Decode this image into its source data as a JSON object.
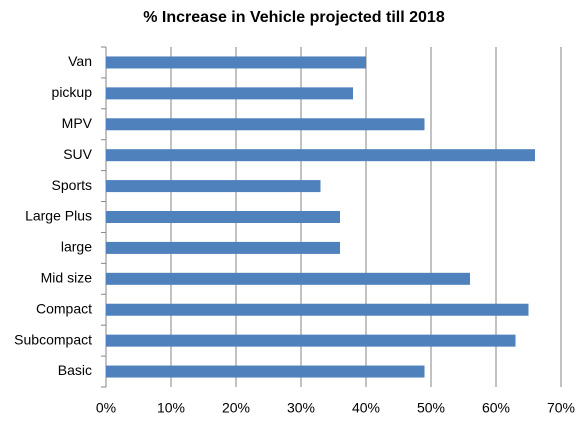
{
  "chart_data": {
    "type": "bar",
    "orientation": "horizontal",
    "title": "% Increase in Vehicle projected till 2018",
    "categories": [
      "Van",
      "pickup",
      "MPV",
      "SUV",
      "Sports",
      "Large Plus",
      "large",
      "Mid size",
      "Compact",
      "Subcompact",
      "Basic"
    ],
    "values": [
      40,
      38,
      49,
      66,
      33,
      36,
      36,
      56,
      65,
      63,
      49
    ],
    "color": "#4f81bd",
    "xlim": [
      0,
      70
    ],
    "xticks": [
      {
        "value": 0,
        "label": "0%"
      },
      {
        "value": 10,
        "label": "10%"
      },
      {
        "value": 20,
        "label": "20%"
      },
      {
        "value": 30,
        "label": "30%"
      },
      {
        "value": 40,
        "label": "40%"
      },
      {
        "value": 50,
        "label": "50%"
      },
      {
        "value": 60,
        "label": "60%"
      },
      {
        "value": 70,
        "label": "70%"
      }
    ],
    "grid": true
  }
}
